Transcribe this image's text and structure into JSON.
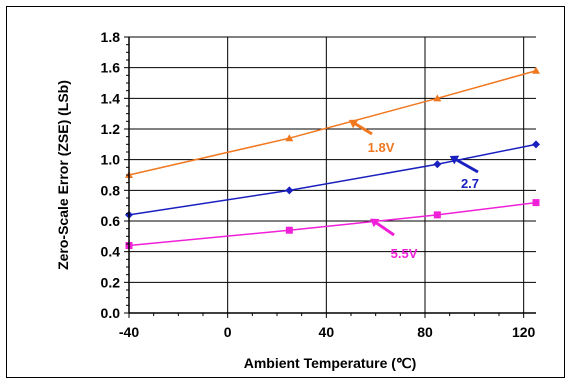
{
  "chart_data": {
    "type": "line",
    "xlabel": "Ambient Temperature (℃)",
    "ylabel": "Zero-Scale Error (ZSE) (LSb)",
    "xlim": [
      -40,
      125
    ],
    "ylim": [
      0,
      1.8
    ],
    "xticks": [
      -40,
      0,
      40,
      80,
      120
    ],
    "xtick_labels": [
      "-40",
      "0",
      "40",
      "80",
      "120"
    ],
    "yticks": [
      0,
      0.2,
      0.4,
      0.6,
      0.8,
      1.0,
      1.2,
      1.4,
      1.6,
      1.8
    ],
    "ytick_labels": [
      "0.0",
      "0.2",
      "0.4",
      "0.6",
      "0.8",
      "1.0",
      "1.2",
      "1.4",
      "1.6",
      "1.8"
    ],
    "grid": true,
    "series": [
      {
        "name": "1.8V",
        "color": "#f07820",
        "marker": "triangle",
        "x": [
          -40,
          25,
          85,
          125
        ],
        "y": [
          0.9,
          1.14,
          1.4,
          1.58
        ]
      },
      {
        "name": "2.7",
        "color": "#1a20c0",
        "marker": "diamond",
        "x": [
          -40,
          25,
          85,
          125
        ],
        "y": [
          0.64,
          0.8,
          0.97,
          1.1
        ]
      },
      {
        "name": "5.5V",
        "color": "#f020d8",
        "marker": "square",
        "x": [
          -40,
          25,
          85,
          125
        ],
        "y": [
          0.44,
          0.54,
          0.64,
          0.72
        ]
      }
    ]
  }
}
